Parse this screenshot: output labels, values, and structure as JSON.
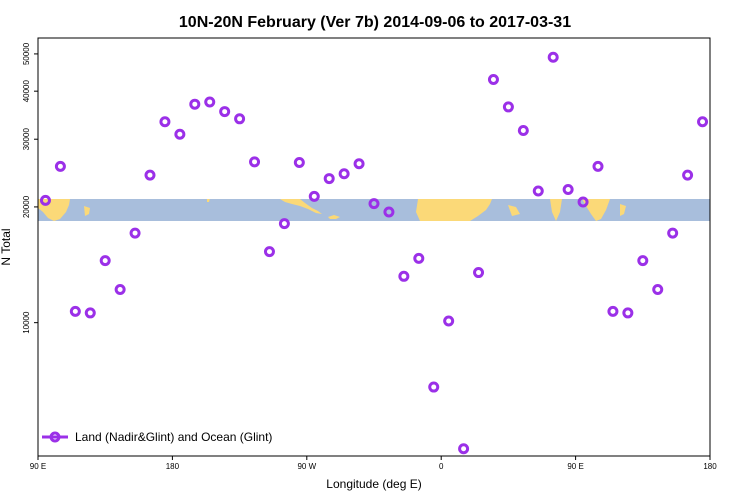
{
  "chart_data": {
    "type": "scatter",
    "title": "10N-20N February (Ver 7b)   2014-09-06 to 2017-03-31",
    "xlabel": "Longitude (deg E)",
    "ylabel": "N Total",
    "y_scale": "log",
    "xlim": [
      90,
      540
    ],
    "ylim": [
      4500,
      55000
    ],
    "x_ticks": [
      {
        "value": 90,
        "label": "90 E"
      },
      {
        "value": 180,
        "label": "180"
      },
      {
        "value": 270,
        "label": "90 W"
      },
      {
        "value": 360,
        "label": "0"
      },
      {
        "value": 450,
        "label": "90 E"
      },
      {
        "value": 540,
        "label": "180"
      }
    ],
    "y_ticks": [
      {
        "value": 10000,
        "label": "10000"
      },
      {
        "value": 20000,
        "label": "20000"
      },
      {
        "value": 30000,
        "label": "30000"
      },
      {
        "value": 40000,
        "label": "40000"
      },
      {
        "value": 50000,
        "label": "50000"
      }
    ],
    "map_band": {
      "lat_range": "10N-20N",
      "y_range": [
        20000,
        23000
      ],
      "ocean_color": "#a8bedc",
      "land_color": "#fbd978"
    },
    "legend": {
      "position": "bottom-left"
    },
    "series": [
      {
        "name": "Land (Nadir&Glint) and Ocean (Glint)",
        "color": "#9b30e8",
        "marker": "open-circle",
        "x": [
          95,
          105,
          115,
          125,
          135,
          145,
          155,
          165,
          175,
          185,
          195,
          205,
          215,
          225,
          235,
          245,
          255,
          265,
          275,
          285,
          295,
          305,
          315,
          325,
          335,
          345,
          355,
          365,
          375,
          385,
          395,
          405,
          415,
          425,
          435,
          445,
          455,
          465,
          475,
          485,
          495,
          505,
          515,
          525,
          535
        ],
        "values": [
          20800,
          25500,
          10700,
          10600,
          14500,
          12200,
          17100,
          24200,
          33300,
          30900,
          37000,
          37500,
          35400,
          33900,
          26200,
          15300,
          18100,
          26100,
          21300,
          23700,
          24400,
          25900,
          20400,
          19400,
          13200,
          14700,
          6800,
          10100,
          4700,
          13500,
          42900,
          36400,
          31600,
          22000,
          49000,
          22200,
          20600,
          25500,
          10700,
          10600,
          14500,
          12200,
          17100,
          24200,
          33300
        ]
      }
    ]
  }
}
